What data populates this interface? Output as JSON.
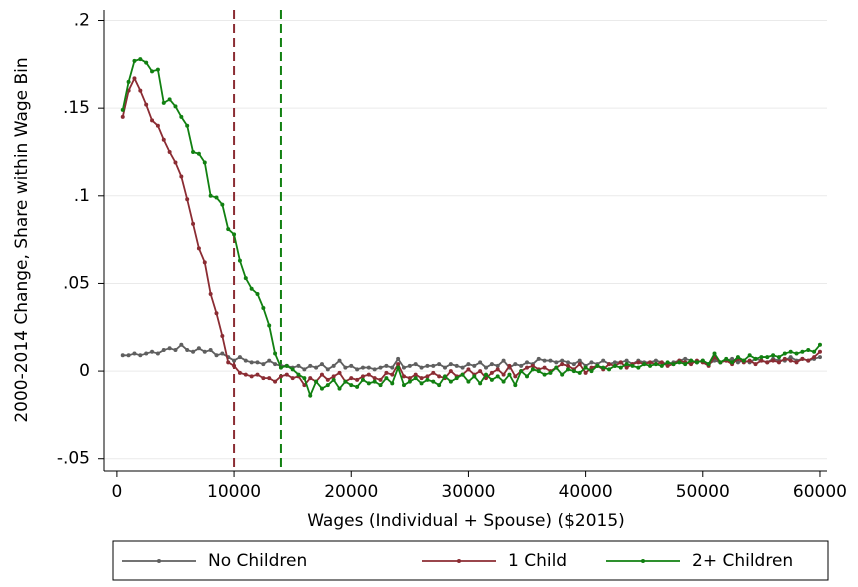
{
  "chart_data": {
    "type": "line",
    "ylabel": "2000-2014 Change, Share within Wage Bin",
    "xlabel": "Wages (Individual + Spouse) ($2015)",
    "x": [
      500,
      1000,
      1500,
      2000,
      2500,
      3000,
      3500,
      4000,
      4500,
      5000,
      5500,
      6000,
      6500,
      7000,
      7500,
      8000,
      8500,
      9000,
      9500,
      10000,
      10500,
      11000,
      11500,
      12000,
      12500,
      13000,
      13500,
      14000,
      14500,
      15000,
      15500,
      16000,
      16500,
      17000,
      17500,
      18000,
      18500,
      19000,
      19500,
      20000,
      20500,
      21000,
      21500,
      22000,
      22500,
      23000,
      23500,
      24000,
      24500,
      25000,
      25500,
      26000,
      26500,
      27000,
      27500,
      28000,
      28500,
      29000,
      29500,
      30000,
      30500,
      31000,
      31500,
      32000,
      32500,
      33000,
      33500,
      34000,
      34500,
      35000,
      35500,
      36000,
      36500,
      37000,
      37500,
      38000,
      38500,
      39000,
      39500,
      40000,
      40500,
      41000,
      41500,
      42000,
      42500,
      43000,
      43500,
      44000,
      44500,
      45000,
      45500,
      46000,
      46500,
      47000,
      47500,
      48000,
      48500,
      49000,
      49500,
      50000,
      50500,
      51000,
      51500,
      52000,
      52500,
      53000,
      53500,
      54000,
      54500,
      55000,
      55500,
      56000,
      56500,
      57000,
      57500,
      58000,
      58500,
      59000,
      59500,
      60000
    ],
    "series": [
      {
        "name": "No Children",
        "color": "#5f5f5f",
        "values": [
          0.009,
          0.009,
          0.01,
          0.009,
          0.01,
          0.011,
          0.01,
          0.012,
          0.013,
          0.012,
          0.015,
          0.012,
          0.011,
          0.013,
          0.011,
          0.012,
          0.009,
          0.01,
          0.008,
          0.006,
          0.008,
          0.006,
          0.005,
          0.005,
          0.004,
          0.006,
          0.004,
          0.003,
          0.003,
          0.002,
          0.003,
          0.001,
          0.003,
          0.002,
          0.004,
          0.001,
          0.003,
          0.006,
          0.002,
          0.003,
          0.001,
          0.002,
          0.002,
          0.001,
          0.002,
          0.003,
          0.002,
          0.007,
          0.002,
          0.003,
          0.004,
          0.002,
          0.003,
          0.003,
          0.004,
          0.002,
          0.004,
          0.003,
          0.002,
          0.004,
          0.003,
          0.005,
          0.002,
          0.004,
          0.003,
          0.006,
          0.002,
          0.004,
          0.003,
          0.005,
          0.004,
          0.007,
          0.006,
          0.006,
          0.005,
          0.006,
          0.005,
          0.004,
          0.006,
          0.003,
          0.005,
          0.004,
          0.006,
          0.004,
          0.005,
          0.005,
          0.006,
          0.004,
          0.006,
          0.005,
          0.005,
          0.006,
          0.005,
          0.004,
          0.005,
          0.006,
          0.007,
          0.006,
          0.005,
          0.006,
          0.004,
          0.006,
          0.005,
          0.006,
          0.007,
          0.005,
          0.006,
          0.005,
          0.007,
          0.006,
          0.005,
          0.007,
          0.006,
          0.006,
          0.008,
          0.006,
          0.007,
          0.006,
          0.007,
          0.008
        ]
      },
      {
        "name": "1 Child",
        "color": "#8b2c33",
        "values": [
          0.145,
          0.16,
          0.167,
          0.16,
          0.152,
          0.143,
          0.14,
          0.132,
          0.125,
          0.119,
          0.111,
          0.098,
          0.084,
          0.07,
          0.062,
          0.044,
          0.033,
          0.02,
          0.005,
          0.003,
          -0.001,
          -0.002,
          -0.003,
          -0.002,
          -0.004,
          -0.004,
          -0.006,
          -0.003,
          -0.002,
          -0.004,
          -0.003,
          -0.008,
          -0.004,
          -0.006,
          -0.002,
          -0.005,
          -0.003,
          -0.001,
          -0.006,
          -0.004,
          -0.005,
          -0.003,
          -0.002,
          -0.004,
          -0.005,
          -0.001,
          -0.002,
          0.004,
          -0.003,
          -0.004,
          -0.002,
          -0.004,
          -0.003,
          -0.001,
          -0.003,
          -0.004,
          0.0,
          -0.003,
          -0.002,
          0.001,
          -0.002,
          0.0,
          -0.004,
          -0.001,
          0.001,
          -0.002,
          0.003,
          -0.003,
          0.0,
          0.002,
          0.003,
          0.001,
          0.002,
          0.0,
          0.002,
          0.004,
          0.003,
          0.001,
          0.004,
          -0.001,
          0.002,
          0.003,
          0.001,
          0.004,
          0.003,
          0.005,
          0.002,
          0.004,
          0.005,
          0.004,
          0.005,
          0.004,
          0.005,
          0.003,
          0.004,
          0.006,
          0.005,
          0.004,
          0.006,
          0.005,
          0.003,
          0.008,
          0.005,
          0.006,
          0.004,
          0.007,
          0.005,
          0.006,
          0.004,
          0.006,
          0.005,
          0.006,
          0.005,
          0.007,
          0.006,
          0.005,
          0.007,
          0.006,
          0.008,
          0.011
        ]
      },
      {
        "name": "2+ Children",
        "color": "#118011",
        "values": [
          0.149,
          0.165,
          0.177,
          0.178,
          0.176,
          0.171,
          0.172,
          0.153,
          0.155,
          0.151,
          0.145,
          0.14,
          0.125,
          0.124,
          0.119,
          0.1,
          0.099,
          0.095,
          0.081,
          0.078,
          0.063,
          0.053,
          0.047,
          0.044,
          0.036,
          0.026,
          0.01,
          0.002,
          0.003,
          0.001,
          -0.002,
          -0.004,
          -0.014,
          -0.006,
          -0.01,
          -0.008,
          -0.005,
          -0.01,
          -0.006,
          -0.008,
          -0.009,
          -0.005,
          -0.007,
          -0.006,
          -0.008,
          -0.004,
          -0.007,
          0.002,
          -0.008,
          -0.006,
          -0.004,
          -0.007,
          -0.005,
          -0.006,
          -0.008,
          -0.003,
          -0.006,
          -0.004,
          -0.002,
          -0.006,
          -0.003,
          -0.007,
          -0.002,
          -0.005,
          -0.003,
          -0.006,
          -0.002,
          -0.008,
          0.0,
          -0.003,
          0.001,
          0.0,
          -0.002,
          -0.001,
          0.002,
          -0.002,
          0.001,
          0.0,
          -0.001,
          0.002,
          0.0,
          0.003,
          0.002,
          0.001,
          0.003,
          0.002,
          0.004,
          0.003,
          0.002,
          0.004,
          0.003,
          0.004,
          0.003,
          0.005,
          0.004,
          0.005,
          0.004,
          0.006,
          0.005,
          0.006,
          0.004,
          0.01,
          0.005,
          0.007,
          0.005,
          0.008,
          0.006,
          0.009,
          0.007,
          0.008,
          0.008,
          0.009,
          0.008,
          0.01,
          0.011,
          0.01,
          0.011,
          0.012,
          0.011,
          0.015
        ]
      }
    ],
    "reference_lines": [
      {
        "x": 10000,
        "color": "#8b2c33"
      },
      {
        "x": 14000,
        "color": "#118011"
      }
    ],
    "xlim": [
      -1100,
      60600
    ],
    "xticks": [
      0,
      10000,
      20000,
      30000,
      40000,
      50000,
      60000
    ],
    "ylim": [
      -0.057,
      0.206
    ],
    "yticks": [
      {
        "value": -0.05,
        "label": "-.05"
      },
      0,
      {
        "value": 0.05,
        "label": ".05"
      },
      {
        "value": 0.1,
        "label": ".1"
      },
      {
        "value": 0.15,
        "label": ".15"
      },
      {
        "value": 0.2,
        "label": ".2"
      }
    ],
    "grid": true,
    "legend": "bottom"
  }
}
